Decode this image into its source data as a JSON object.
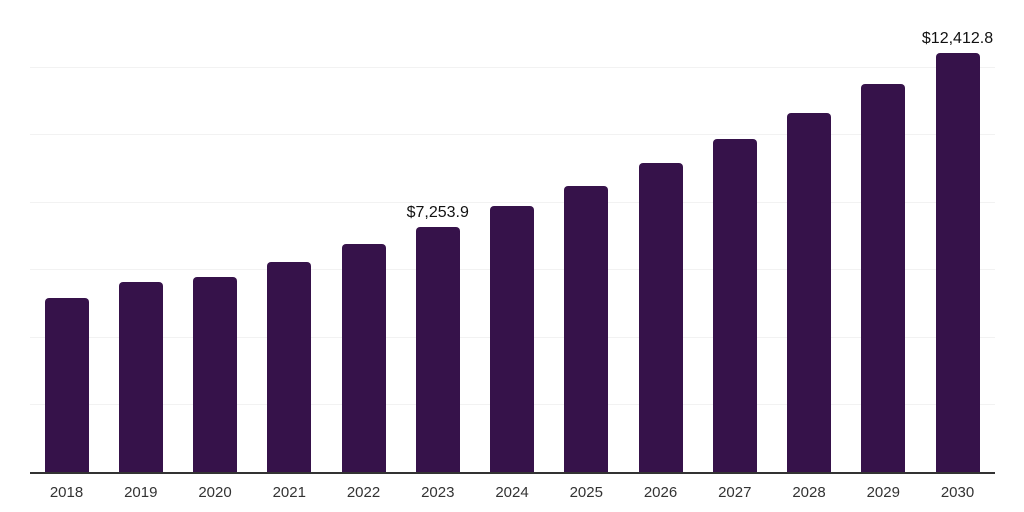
{
  "chart_data": {
    "type": "bar",
    "title": "",
    "categories": [
      "2018",
      "2019",
      "2020",
      "2021",
      "2022",
      "2023",
      "2024",
      "2025",
      "2026",
      "2027",
      "2028",
      "2029",
      "2030"
    ],
    "values": [
      5160,
      5630,
      5770,
      6210,
      6740,
      7253.9,
      7860,
      8470,
      9150,
      9850,
      10640,
      11480,
      12412.8
    ],
    "data_labels": [
      {
        "category": "2023",
        "text": "$7,253.9"
      },
      {
        "category": "2030",
        "text": "$12,412.8"
      }
    ],
    "xlabel": "",
    "ylabel": "",
    "ylim": [
      0,
      14000
    ],
    "gridline_step": 2000,
    "grid": "horizontal",
    "legend": "none",
    "colors": {
      "bar": "#36124A",
      "axis_line": "#333333",
      "gridline": "#f2f2f2",
      "tick_label": "#333333",
      "data_label": "#111111"
    }
  }
}
